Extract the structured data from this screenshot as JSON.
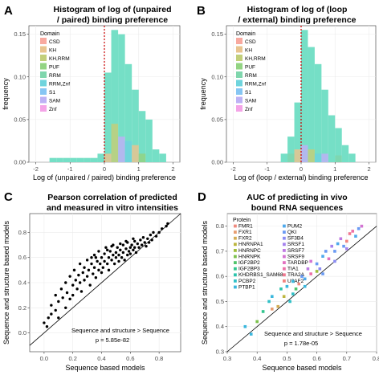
{
  "colors": {
    "CSD": "#f8a99f",
    "KH": "#e8c48f",
    "KH,RRM": "#c2cf7a",
    "PUF": "#93d483",
    "RRM": "#7fd6ad",
    "RRM,Znf": "#6fd4dd",
    "S1": "#86c6f3",
    "SAM": "#bdb2f5",
    "Znf": "#f4a4e7",
    "hist": "#75dfc6",
    "grid": "#ebebeb",
    "vline": "#cc0000"
  },
  "chart_data": [
    {
      "panel": "A",
      "type": "histogram",
      "title": [
        "Histogram of log of (unpaired",
        "/ paired) binding preference"
      ],
      "xlabel": "Log of (unpaired / paired) binding preference",
      "ylabel": "frequency",
      "xlim": [
        -2.2,
        2.2
      ],
      "ylim": [
        0,
        0.16
      ],
      "xticks": [
        -2,
        -1,
        0,
        1,
        2
      ],
      "yticks": [
        0.0,
        0.05,
        0.1,
        0.15
      ],
      "xtick_labels": [
        "-2",
        "-1",
        "0",
        "1",
        "2"
      ],
      "ytick_labels": [
        "0.00",
        "0.05",
        "0.10",
        "0.15"
      ],
      "bin_width": 0.2,
      "bars": [
        {
          "x0": -1.6,
          "y": 0.005
        },
        {
          "x0": -1.4,
          "y": 0.005
        },
        {
          "x0": -1.2,
          "y": 0.005
        },
        {
          "x0": -1.0,
          "y": 0.005
        },
        {
          "x0": -0.8,
          "y": 0.005
        },
        {
          "x0": -0.6,
          "y": 0.005
        },
        {
          "x0": -0.4,
          "y": 0.005
        },
        {
          "x0": -0.2,
          "y": 0.01
        },
        {
          "x0": 0.0,
          "y": 0.105
        },
        {
          "x0": 0.2,
          "y": 0.155
        },
        {
          "x0": 0.4,
          "y": 0.15
        },
        {
          "x0": 0.6,
          "y": 0.115
        },
        {
          "x0": 0.8,
          "y": 0.085
        },
        {
          "x0": 1.0,
          "y": 0.06
        },
        {
          "x0": 1.2,
          "y": 0.05
        },
        {
          "x0": 1.4,
          "y": 0.015
        },
        {
          "x0": 1.6,
          "y": 0.01
        }
      ],
      "domain_overlay": [
        {
          "x0": 0.0,
          "h": 0.01,
          "d": "KH"
        },
        {
          "x0": 0.2,
          "h": 0.045,
          "d": "KH,RRM"
        },
        {
          "x0": 0.4,
          "h": 0.03,
          "d": "SAM"
        },
        {
          "x0": 0.6,
          "h": 0.025,
          "d": "RRM,Znf"
        },
        {
          "x0": 0.8,
          "h": 0.02,
          "d": "KH"
        },
        {
          "x0": 1.0,
          "h": 0.01,
          "d": "PUF"
        }
      ],
      "vline": 0,
      "legend": {
        "title": "Domain",
        "items": [
          "CSD",
          "KH",
          "KH,RRM",
          "PUF",
          "RRM",
          "RRM,Znf",
          "S1",
          "SAM",
          "Znf"
        ],
        "position": "top-left"
      }
    },
    {
      "panel": "B",
      "type": "histogram",
      "title": [
        "Histogram of log of (loop",
        "/ external) binding preference"
      ],
      "xlabel": "Log of (loop / external) binding preference",
      "ylabel": "frequency",
      "xlim": [
        -2.2,
        2.2
      ],
      "ylim": [
        0,
        0.16
      ],
      "xticks": [
        -2,
        -1,
        0,
        1,
        2
      ],
      "yticks": [
        0.0,
        0.05,
        0.1,
        0.15
      ],
      "xtick_labels": [
        "-2",
        "-1",
        "0",
        "1",
        "2"
      ],
      "ytick_labels": [
        "0.00",
        "0.05",
        "0.10",
        "0.15"
      ],
      "bin_width": 0.2,
      "bars": [
        {
          "x0": -0.6,
          "y": 0.01
        },
        {
          "x0": -0.4,
          "y": 0.03
        },
        {
          "x0": -0.2,
          "y": 0.07
        },
        {
          "x0": 0.0,
          "y": 0.155
        },
        {
          "x0": 0.2,
          "y": 0.135
        },
        {
          "x0": 0.4,
          "y": 0.115
        },
        {
          "x0": 0.6,
          "y": 0.085
        },
        {
          "x0": 0.8,
          "y": 0.055
        },
        {
          "x0": 1.0,
          "y": 0.04
        },
        {
          "x0": 1.2,
          "y": 0.02
        },
        {
          "x0": 1.4,
          "y": 0.01
        }
      ],
      "domain_overlay": [
        {
          "x0": -0.4,
          "h": 0.01,
          "d": "RRM"
        },
        {
          "x0": -0.2,
          "h": 0.015,
          "d": "KH"
        },
        {
          "x0": 0.0,
          "h": 0.02,
          "d": "SAM"
        },
        {
          "x0": 0.2,
          "h": 0.015,
          "d": "KH,RRM"
        },
        {
          "x0": 0.4,
          "h": 0.01,
          "d": "RRM,Znf"
        },
        {
          "x0": 0.6,
          "h": 0.01,
          "d": "SAM"
        },
        {
          "x0": 1.0,
          "h": 0.008,
          "d": "RRM"
        }
      ],
      "vline": 0,
      "legend": {
        "title": "Domain",
        "items": [
          "CSD",
          "KH",
          "KH,RRM",
          "PUF",
          "RRM",
          "RRM,Znf",
          "S1",
          "SAM",
          "Znf"
        ],
        "position": "top-left"
      }
    },
    {
      "panel": "C",
      "type": "scatter",
      "title": [
        "Pearson correlation of predicted",
        "and measured in vitro intensities"
      ],
      "xlabel": "Sequence based models",
      "ylabel": "Sequence and structure based models",
      "xlim": [
        -0.1,
        0.95
      ],
      "ylim": [
        -0.15,
        0.95
      ],
      "xticks": [
        0.0,
        0.2,
        0.4,
        0.6,
        0.8
      ],
      "yticks": [
        0.0,
        0.2,
        0.4,
        0.6,
        0.8
      ],
      "xtick_labels": [
        "0.0",
        "0.2",
        "0.4",
        "0.6",
        "0.8"
      ],
      "ytick_labels": [
        "0.0",
        "0.2",
        "0.4",
        "0.6",
        "0.8"
      ],
      "diagonal": true,
      "annotation": "Sequence and structure > Sequence",
      "pvalue": "p =   5.85e-82",
      "points": [
        [
          0.0,
          0.08
        ],
        [
          0.02,
          0.05
        ],
        [
          0.03,
          0.12
        ],
        [
          0.05,
          0.15
        ],
        [
          0.05,
          0.22
        ],
        [
          0.08,
          0.18
        ],
        [
          0.08,
          0.3
        ],
        [
          0.1,
          0.25
        ],
        [
          0.1,
          0.12
        ],
        [
          0.12,
          0.35
        ],
        [
          0.13,
          0.28
        ],
        [
          0.15,
          0.2
        ],
        [
          0.15,
          0.4
        ],
        [
          0.16,
          0.32
        ],
        [
          0.18,
          0.27
        ],
        [
          0.18,
          0.45
        ],
        [
          0.2,
          0.38
        ],
        [
          0.2,
          0.3
        ],
        [
          0.21,
          0.5
        ],
        [
          0.22,
          0.42
        ],
        [
          0.23,
          0.35
        ],
        [
          0.24,
          0.46
        ],
        [
          0.25,
          0.55
        ],
        [
          0.25,
          0.4
        ],
        [
          0.26,
          0.33
        ],
        [
          0.27,
          0.48
        ],
        [
          0.28,
          0.52
        ],
        [
          0.28,
          0.42
        ],
        [
          0.3,
          0.58
        ],
        [
          0.3,
          0.45
        ],
        [
          0.31,
          0.5
        ],
        [
          0.32,
          0.38
        ],
        [
          0.33,
          0.55
        ],
        [
          0.33,
          0.6
        ],
        [
          0.34,
          0.47
        ],
        [
          0.35,
          0.52
        ],
        [
          0.35,
          0.62
        ],
        [
          0.36,
          0.44
        ],
        [
          0.37,
          0.57
        ],
        [
          0.38,
          0.5
        ],
        [
          0.38,
          0.65
        ],
        [
          0.39,
          0.55
        ],
        [
          0.4,
          0.6
        ],
        [
          0.4,
          0.48
        ],
        [
          0.41,
          0.52
        ],
        [
          0.42,
          0.63
        ],
        [
          0.42,
          0.57
        ],
        [
          0.43,
          0.68
        ],
        [
          0.44,
          0.55
        ],
        [
          0.45,
          0.6
        ],
        [
          0.45,
          0.5
        ],
        [
          0.46,
          0.65
        ],
        [
          0.47,
          0.58
        ],
        [
          0.48,
          0.62
        ],
        [
          0.48,
          0.7
        ],
        [
          0.49,
          0.55
        ],
        [
          0.5,
          0.64
        ],
        [
          0.5,
          0.6
        ],
        [
          0.51,
          0.68
        ],
        [
          0.52,
          0.57
        ],
        [
          0.52,
          0.62
        ],
        [
          0.53,
          0.66
        ],
        [
          0.54,
          0.6
        ],
        [
          0.55,
          0.7
        ],
        [
          0.55,
          0.64
        ],
        [
          0.56,
          0.58
        ],
        [
          0.57,
          0.67
        ],
        [
          0.58,
          0.62
        ],
        [
          0.58,
          0.72
        ],
        [
          0.59,
          0.65
        ],
        [
          0.6,
          0.68
        ],
        [
          0.6,
          0.63
        ],
        [
          0.61,
          0.7
        ],
        [
          0.62,
          0.66
        ],
        [
          0.63,
          0.73
        ],
        [
          0.63,
          0.68
        ],
        [
          0.64,
          0.64
        ],
        [
          0.65,
          0.71
        ],
        [
          0.66,
          0.68
        ],
        [
          0.67,
          0.74
        ],
        [
          0.68,
          0.7
        ],
        [
          0.69,
          0.76
        ],
        [
          0.7,
          0.72
        ],
        [
          0.71,
          0.69
        ],
        [
          0.72,
          0.75
        ],
        [
          0.73,
          0.72
        ],
        [
          0.74,
          0.78
        ],
        [
          0.75,
          0.74
        ],
        [
          0.76,
          0.8
        ],
        [
          0.78,
          0.77
        ],
        [
          0.8,
          0.8
        ],
        [
          0.82,
          0.83
        ],
        [
          0.85,
          0.85
        ],
        [
          0.86,
          0.87
        ],
        [
          0.62,
          0.75
        ],
        [
          0.57,
          0.73
        ],
        [
          0.53,
          0.71
        ],
        [
          0.47,
          0.69
        ],
        [
          0.44,
          0.66
        ],
        [
          0.36,
          0.6
        ]
      ]
    },
    {
      "panel": "D",
      "type": "scatter",
      "title": [
        "AUC of predicting in vivo",
        "bound RNA sequences"
      ],
      "xlabel": "Sequence based models",
      "ylabel": "Sequence and structure based models",
      "xlim": [
        0.3,
        0.8
      ],
      "ylim": [
        0.3,
        0.85
      ],
      "xticks": [
        0.3,
        0.4,
        0.5,
        0.6,
        0.7,
        0.8
      ],
      "yticks": [
        0.3,
        0.4,
        0.5,
        0.6,
        0.7,
        0.8
      ],
      "xtick_labels": [
        "0.3",
        "0.4",
        "0.5",
        "0.6",
        "0.7",
        "0.8"
      ],
      "ytick_labels": [
        "0.3",
        "0.4",
        "0.5",
        "0.6",
        "0.7",
        "0.8"
      ],
      "diagonal": true,
      "annotation": "Sequence and structure > Sequence",
      "pvalue": "p =   1.78e-05",
      "legend": {
        "title": "Protein",
        "position": "top-left",
        "col1": [
          "FMR1",
          "FXR1",
          "FXR2",
          "HNRNPA1",
          "HNRNPC",
          "HNRNPK",
          "IGF2BP2",
          "IGF2BP3",
          "KHDRBS1_SAM68",
          "PCBP2",
          "PTBP1"
        ],
        "col2": [
          "PUM2",
          "QKI",
          "SF3B4",
          "SRSF1",
          "SRSF7",
          "SRSF9",
          "TARDBP",
          "TIA1",
          "TRA2A",
          "U2AF2"
        ]
      },
      "protein_colors": {
        "FMR1": "#f08a7e",
        "FXR1": "#e89d70",
        "FXR2": "#d4ad55",
        "HNRNPA1": "#bcb53e",
        "HNRNPC": "#9fbd3c",
        "HNRNPK": "#7cc24c",
        "IGF2BP2": "#4fc46b",
        "IGF2BP3": "#33c58e",
        "KHDRBS1_SAM68": "#2cc4ad",
        "PCBP2": "#30c0c7",
        "PTBP1": "#3bb7dd",
        "PUM2": "#4fa9ec",
        "QKI": "#6a9af3",
        "SF3B4": "#8a8cf4",
        "SRSF1": "#a582ee",
        "SRSF7": "#be7ae3",
        "SRSF9": "#d374d2",
        "TARDBP": "#e270bf",
        "TIA1": "#ec72a8",
        "TRA2A": "#f07890",
        "U2AF2": "#f2847f"
      },
      "points": [
        {
          "x": 0.36,
          "y": 0.4,
          "p": "PTBP1"
        },
        {
          "x": 0.4,
          "y": 0.42,
          "p": "HNRNPK"
        },
        {
          "x": 0.42,
          "y": 0.46,
          "p": "IGF2BP3"
        },
        {
          "x": 0.44,
          "y": 0.5,
          "p": "PCBP2"
        },
        {
          "x": 0.45,
          "y": 0.52,
          "p": "PTBP1"
        },
        {
          "x": 0.47,
          "y": 0.48,
          "p": "FXR2"
        },
        {
          "x": 0.48,
          "y": 0.55,
          "p": "KHDRBS1_SAM68"
        },
        {
          "x": 0.5,
          "y": 0.56,
          "p": "PTBP1"
        },
        {
          "x": 0.51,
          "y": 0.5,
          "p": "PCBP2"
        },
        {
          "x": 0.52,
          "y": 0.58,
          "p": "PTBP1"
        },
        {
          "x": 0.54,
          "y": 0.57,
          "p": "FMR1"
        },
        {
          "x": 0.55,
          "y": 0.6,
          "p": "QKI"
        },
        {
          "x": 0.56,
          "y": 0.59,
          "p": "PUM2"
        },
        {
          "x": 0.57,
          "y": 0.63,
          "p": "SRSF7"
        },
        {
          "x": 0.58,
          "y": 0.61,
          "p": "TIA1"
        },
        {
          "x": 0.58,
          "y": 0.66,
          "p": "SRSF9"
        },
        {
          "x": 0.6,
          "y": 0.65,
          "p": "QKI"
        },
        {
          "x": 0.61,
          "y": 0.63,
          "p": "SF3B4"
        },
        {
          "x": 0.62,
          "y": 0.68,
          "p": "PUM2"
        },
        {
          "x": 0.63,
          "y": 0.7,
          "p": "QKI"
        },
        {
          "x": 0.64,
          "y": 0.67,
          "p": "TARDBP"
        },
        {
          "x": 0.65,
          "y": 0.72,
          "p": "SRSF1"
        },
        {
          "x": 0.66,
          "y": 0.7,
          "p": "QKI"
        },
        {
          "x": 0.67,
          "y": 0.73,
          "p": "PUM2"
        },
        {
          "x": 0.68,
          "y": 0.75,
          "p": "SRSF7"
        },
        {
          "x": 0.69,
          "y": 0.72,
          "p": "QKI"
        },
        {
          "x": 0.7,
          "y": 0.74,
          "p": "U2AF2"
        },
        {
          "x": 0.71,
          "y": 0.77,
          "p": "TRA2A"
        },
        {
          "x": 0.72,
          "y": 0.78,
          "p": "TIA1"
        },
        {
          "x": 0.73,
          "y": 0.76,
          "p": "PUM2"
        },
        {
          "x": 0.74,
          "y": 0.79,
          "p": "QKI"
        },
        {
          "x": 0.75,
          "y": 0.8,
          "p": "SRSF9"
        },
        {
          "x": 0.6,
          "y": 0.62,
          "p": "HNRNPC"
        },
        {
          "x": 0.53,
          "y": 0.55,
          "p": "IGF2BP2"
        },
        {
          "x": 0.49,
          "y": 0.52,
          "p": "HNRNPA1"
        },
        {
          "x": 0.66,
          "y": 0.66,
          "p": "SF3B4"
        },
        {
          "x": 0.45,
          "y": 0.47,
          "p": "FXR1"
        },
        {
          "x": 0.56,
          "y": 0.56,
          "p": "PTBP1"
        },
        {
          "x": 0.7,
          "y": 0.71,
          "p": "SRSF1"
        },
        {
          "x": 0.62,
          "y": 0.61,
          "p": "QKI"
        },
        {
          "x": 0.38,
          "y": 0.37,
          "p": "PTBP1"
        },
        {
          "x": 0.52,
          "y": 0.53,
          "p": "PCBP2"
        }
      ]
    }
  ]
}
